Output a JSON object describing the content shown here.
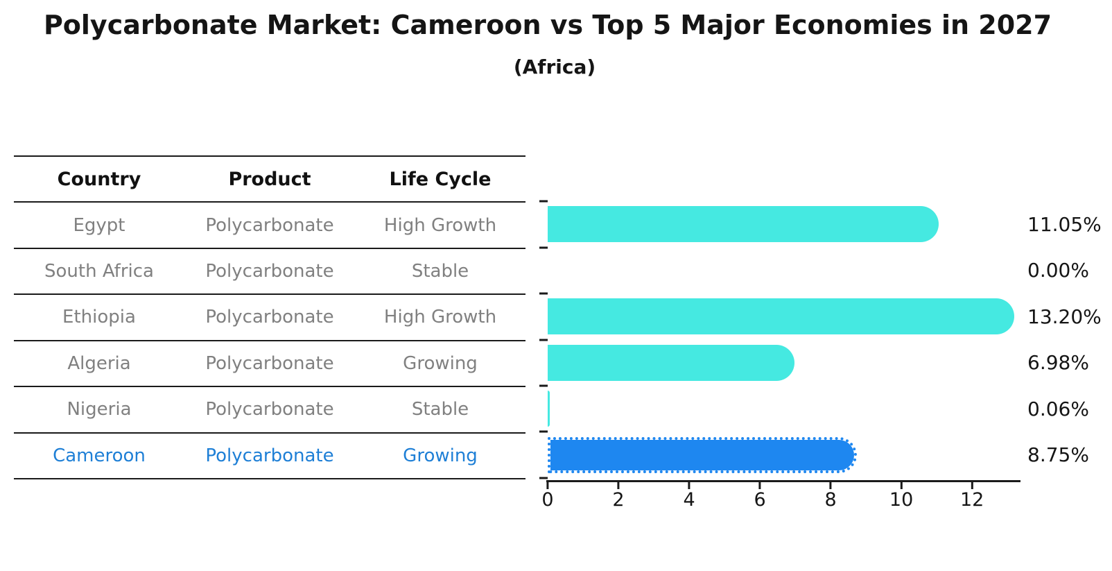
{
  "chart_data": {
    "type": "bar",
    "orientation": "horizontal",
    "title": "Polycarbonate Market: Cameroon vs Top 5 Major Economies in 2027",
    "subtitle": "(Africa)",
    "categories": [
      "Egypt",
      "South Africa",
      "Ethiopia",
      "Algeria",
      "Nigeria",
      "Cameroon"
    ],
    "values": [
      11.05,
      0.0,
      13.2,
      6.98,
      0.06,
      8.75
    ],
    "value_labels": [
      "11.05%",
      "0.00%",
      "13.20%",
      "6.98%",
      "0.06%",
      "8.75%"
    ],
    "unit": "%",
    "xlim": [
      0,
      13.35
    ],
    "xticks": [
      0,
      2,
      4,
      6,
      8,
      10,
      12
    ],
    "xtick_labels": [
      "0",
      "2",
      "4",
      "6",
      "8",
      "10",
      "12"
    ],
    "grid": false,
    "legend": false,
    "highlight_index": 5,
    "highlight_border_style": "dotted"
  },
  "table": {
    "headers": [
      "Country",
      "Product",
      "Life Cycle"
    ],
    "rows": [
      {
        "country": "Egypt",
        "product": "Polycarbonate",
        "life_cycle": "High Growth",
        "highlight": false
      },
      {
        "country": "South Africa",
        "product": "Polycarbonate",
        "life_cycle": "Stable",
        "highlight": false
      },
      {
        "country": "Ethiopia",
        "product": "Polycarbonate",
        "life_cycle": "High Growth",
        "highlight": false
      },
      {
        "country": "Algeria",
        "product": "Polycarbonate",
        "life_cycle": "Growing",
        "highlight": false
      },
      {
        "country": "Nigeria",
        "product": "Polycarbonate",
        "life_cycle": "Stable",
        "highlight": false
      },
      {
        "country": "Cameroon",
        "product": "Polycarbonate",
        "life_cycle": "Growing",
        "highlight": true
      }
    ]
  },
  "colors": {
    "bar_default": "#45E9E1",
    "bar_highlight": "#1E87F0",
    "accent_text": "#1E7FD6",
    "muted_text": "#808080",
    "line": "#1A1A1A"
  }
}
